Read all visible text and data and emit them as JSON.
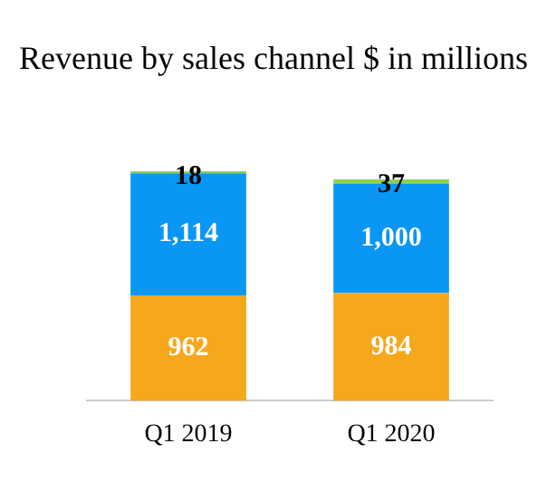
{
  "chart_data": {
    "type": "bar",
    "title": "Revenue by sales channel $ in millions",
    "categories": [
      "Q1 2019",
      "Q1 2020"
    ],
    "stacked": true,
    "relative": false,
    "legend": false,
    "grid": false,
    "series": [
      {
        "color": "#f5a81c",
        "values": [
          962,
          984
        ],
        "value_labels": [
          "962",
          "984"
        ]
      },
      {
        "color": "#0a96f5",
        "values": [
          1114,
          1000
        ],
        "value_labels": [
          "1,114",
          "1,000"
        ]
      },
      {
        "color": "#92d050",
        "values": [
          18,
          37
        ],
        "value_labels": [
          "18",
          "37"
        ]
      }
    ]
  }
}
